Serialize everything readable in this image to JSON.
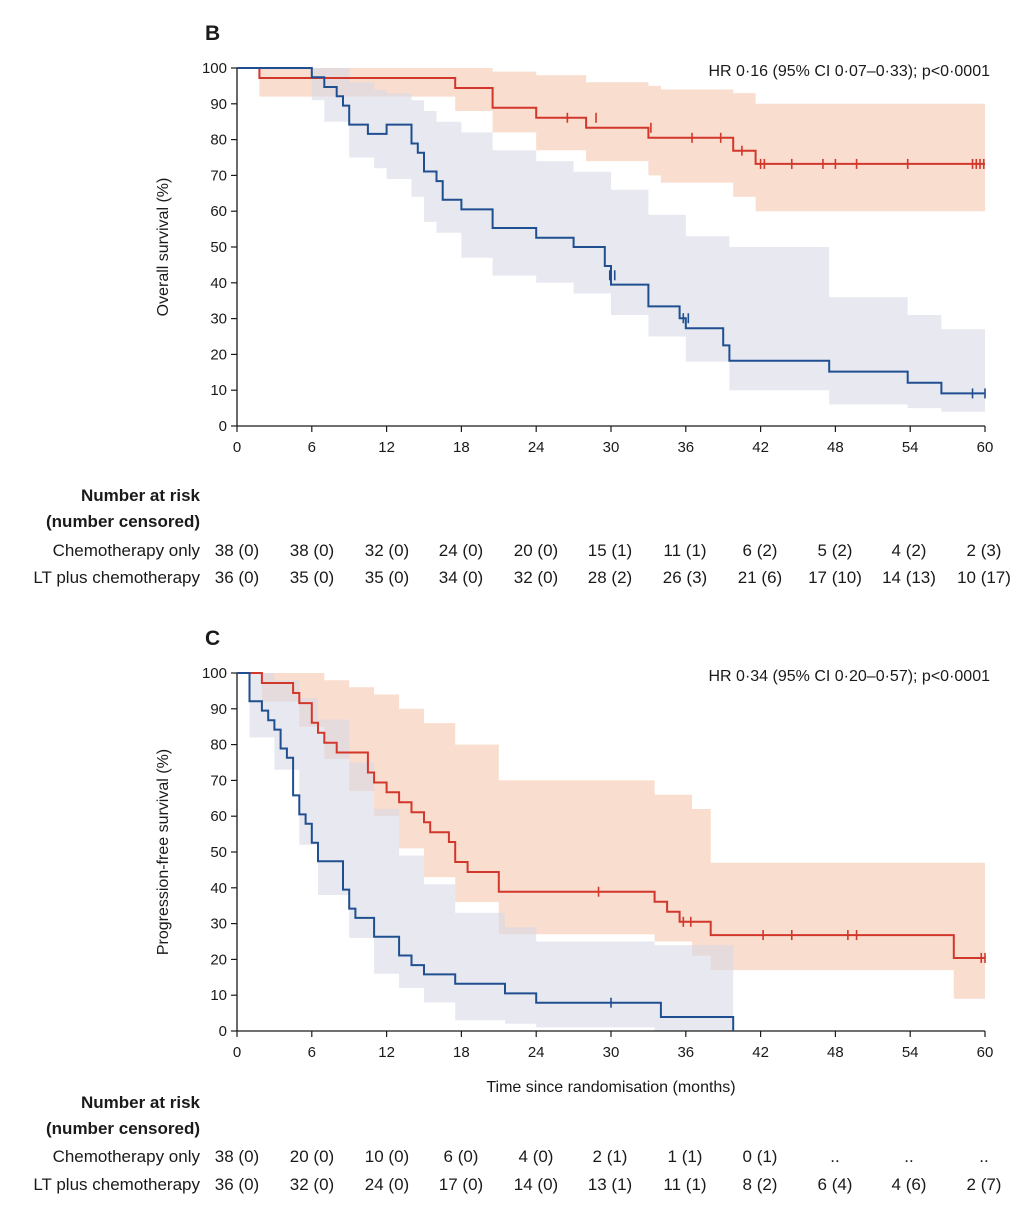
{
  "chart_data": [
    {
      "type": "line",
      "id": "B",
      "panel_label": "B",
      "annotation": "HR 0·16 (95% CI 0·07–0·33); p<0·0001",
      "xlabel": "",
      "ylabel": "Overall survival (%)",
      "xlim": [
        0,
        60
      ],
      "ylim": [
        0,
        100
      ],
      "xticks": [
        "0",
        "6",
        "12",
        "18",
        "24",
        "30",
        "36",
        "42",
        "48",
        "54",
        "60"
      ],
      "yticks": [
        "0",
        "10",
        "20",
        "30",
        "40",
        "50",
        "60",
        "70",
        "80",
        "90",
        "100"
      ],
      "series": [
        {
          "name": "LT plus chemotherapy",
          "color": "#d2372c",
          "band_color": "#f5c6ae",
          "x": [
            0,
            1.8,
            17.5,
            20.5,
            24,
            28,
            33,
            34,
            39.8,
            41.6,
            60
          ],
          "y": [
            100,
            97.2,
            94.4,
            88.9,
            86.1,
            83.3,
            80.5,
            80.5,
            76.9,
            73.2,
            73.2
          ],
          "ci_x": [
            0,
            1.8,
            6,
            17.5,
            20.5,
            24,
            28,
            33,
            34,
            39.8,
            41.6,
            60
          ],
          "ci_upper": [
            100,
            100,
            100,
            100,
            99,
            98,
            96,
            95,
            94,
            93,
            90,
            90
          ],
          "ci_lower": [
            100,
            92,
            92,
            88,
            82,
            77,
            74,
            70,
            68,
            64,
            60,
            60
          ],
          "censor_x": [
            26.5,
            28.8,
            33.2,
            36.5,
            38.8,
            40.5,
            42,
            42.3,
            44.5,
            47,
            48,
            49.7,
            53.8,
            59,
            59.3,
            59.6,
            59.9
          ],
          "censor_y": [
            86.1,
            86.1,
            83.3,
            80.5,
            80.5,
            76.9,
            73.2,
            73.2,
            73.2,
            73.2,
            73.2,
            73.2,
            73.2,
            73.2,
            73.2,
            73.2,
            73.2
          ]
        },
        {
          "name": "Chemotherapy only",
          "color": "#1f4f91",
          "band_color": "#d8dae6",
          "x": [
            0,
            6,
            7,
            8,
            8.5,
            9,
            10.5,
            11,
            12,
            14,
            14.5,
            15,
            16,
            16.5,
            17,
            18,
            20.5,
            21,
            24,
            27,
            29.5,
            30,
            33,
            35.5,
            36,
            39,
            39.5,
            47.5,
            53.8,
            56.5,
            60
          ],
          "y": [
            100,
            97.4,
            94.7,
            92.1,
            89.5,
            84.2,
            81.6,
            81.6,
            84.2,
            78.9,
            76.3,
            71.1,
            68.4,
            63.2,
            63.2,
            60.5,
            55.3,
            55.3,
            52.6,
            50,
            44.7,
            39.5,
            33.4,
            30.1,
            27.3,
            22.5,
            18.2,
            15.2,
            12.1,
            9.1,
            9.1
          ],
          "ci_x": [
            0,
            6,
            7,
            9,
            11,
            12,
            14,
            15,
            16,
            18,
            20.5,
            24,
            27,
            30,
            33,
            36,
            39.5,
            47.5,
            53.8,
            56.5,
            60
          ],
          "ci_upper": [
            100,
            100,
            100,
            96,
            94,
            93,
            91,
            88,
            85,
            82,
            77,
            74,
            71,
            66,
            59,
            53,
            50,
            36,
            31,
            27,
            27
          ],
          "ci_lower": [
            100,
            91,
            85,
            75,
            72,
            69,
            64,
            57,
            54,
            47,
            42,
            40,
            37,
            31,
            25,
            18,
            10,
            6,
            5,
            4,
            4
          ],
          "censor_x": [
            29.9,
            30.3,
            35.8,
            36.2,
            59,
            60
          ],
          "censor_y": [
            42.1,
            42.1,
            30.1,
            30.1,
            9.1,
            9.1
          ]
        }
      ],
      "risk_table": {
        "title_line1": "Number at risk",
        "title_line2": "(number censored)",
        "rows": [
          {
            "label": "Chemotherapy only",
            "cells": [
              "38 (0)",
              "38 (0)",
              "32 (0)",
              "24 (0)",
              "20 (0)",
              "15 (1)",
              "11 (1)",
              "6 (2)",
              "5 (2)",
              "4 (2)",
              "2 (3)"
            ]
          },
          {
            "label": "LT plus chemotherapy",
            "cells": [
              "36 (0)",
              "35 (0)",
              "35 (0)",
              "34 (0)",
              "32 (0)",
              "28 (2)",
              "26 (3)",
              "21 (6)",
              "17 (10)",
              "14 (13)",
              "10 (17)"
            ]
          }
        ]
      }
    },
    {
      "type": "line",
      "id": "C",
      "panel_label": "C",
      "annotation": "HR 0·34 (95% CI 0·20–0·57); p<0·0001",
      "xlabel": "Time since randomisation (months)",
      "ylabel": "Progression-free survival (%)",
      "xlim": [
        0,
        60
      ],
      "ylim": [
        0,
        100
      ],
      "xticks": [
        "0",
        "6",
        "12",
        "18",
        "24",
        "30",
        "36",
        "42",
        "48",
        "54",
        "60"
      ],
      "yticks": [
        "0",
        "10",
        "20",
        "30",
        "40",
        "50",
        "60",
        "70",
        "80",
        "90",
        "100"
      ],
      "series": [
        {
          "name": "LT plus chemotherapy",
          "color": "#d2372c",
          "band_color": "#f5c6ae",
          "x": [
            0,
            2,
            4.5,
            5,
            6,
            6.5,
            7,
            8,
            9,
            10.5,
            11,
            12,
            13,
            14,
            15,
            15.5,
            17,
            17.5,
            18.5,
            21,
            29,
            33.5,
            34.5,
            35.5,
            36.5,
            38,
            57.5,
            60
          ],
          "y": [
            100,
            97.2,
            94.4,
            91.6,
            86.1,
            83.3,
            80.5,
            77.8,
            77.8,
            72.2,
            69.4,
            66.7,
            63.9,
            61.1,
            58.3,
            55.5,
            52.8,
            47.2,
            44.4,
            38.9,
            38.9,
            36.1,
            33.3,
            30.5,
            30.5,
            26.8,
            20.4,
            20.4
          ],
          "ci_x": [
            0,
            2,
            5,
            7,
            9,
            11,
            13,
            15,
            17.5,
            21,
            29,
            33.5,
            36.5,
            38,
            57.5,
            60
          ],
          "ci_upper": [
            100,
            100,
            100,
            98,
            96,
            94,
            90,
            86,
            80,
            70,
            70,
            66,
            62,
            47,
            47,
            47
          ],
          "ci_lower": [
            100,
            92,
            85,
            76,
            67,
            60,
            51,
            43,
            36,
            27,
            27,
            25,
            21,
            17,
            9,
            9
          ],
          "censor_x": [
            29,
            35.8,
            36.4,
            42.2,
            44.5,
            49,
            49.7,
            59.7,
            60
          ],
          "censor_y": [
            38.9,
            30.5,
            30.5,
            26.8,
            26.8,
            26.8,
            26.8,
            20.4,
            20.4
          ]
        },
        {
          "name": "Chemotherapy only",
          "color": "#1f4f91",
          "band_color": "#d8dae6",
          "x": [
            0,
            1,
            2,
            2.5,
            3,
            3.5,
            4,
            4.5,
            5,
            5.5,
            6,
            6.5,
            8.5,
            9,
            9.5,
            10,
            10.5,
            11,
            12,
            13,
            14,
            14.5,
            15,
            16,
            17.5,
            21.5,
            24,
            27,
            33.5,
            34,
            39.8
          ],
          "y": [
            100,
            92.1,
            89.5,
            86.8,
            84.2,
            78.9,
            76.3,
            65.8,
            60.5,
            57.9,
            52.6,
            47.4,
            39.5,
            34.2,
            31.6,
            31.6,
            31.6,
            26.3,
            26.3,
            21.1,
            18.4,
            18.4,
            15.8,
            15.8,
            13.2,
            10.5,
            7.9,
            7.9,
            7.9,
            3.9,
            0
          ],
          "ci_x": [
            0,
            1,
            3,
            5,
            6.5,
            9,
            11,
            13,
            15,
            17.5,
            21.5,
            24,
            33.5,
            39.8
          ],
          "ci_upper": [
            100,
            100,
            98,
            93,
            87,
            75,
            62,
            49,
            41,
            33,
            29,
            25,
            24,
            24
          ],
          "ci_lower": [
            100,
            82,
            73,
            52,
            38,
            26,
            16,
            12,
            8,
            3,
            2,
            1,
            0,
            0
          ],
          "censor_x": [
            30
          ],
          "censor_y": [
            7.9
          ]
        }
      ],
      "risk_table": {
        "title_line1": "Number at risk",
        "title_line2": "(number censored)",
        "rows": [
          {
            "label": "Chemotherapy only",
            "cells": [
              "38 (0)",
              "20 (0)",
              "10 (0)",
              "6 (0)",
              "4 (0)",
              "2 (1)",
              "1 (1)",
              "0 (1)",
              "..",
              "..",
              ".."
            ]
          },
          {
            "label": "LT plus chemotherapy",
            "cells": [
              "36 (0)",
              "32 (0)",
              "24 (0)",
              "17 (0)",
              "14 (0)",
              "13 (1)",
              "11 (1)",
              "8 (2)",
              "6 (4)",
              "4 (6)",
              "2 (7)"
            ]
          }
        ]
      }
    }
  ]
}
